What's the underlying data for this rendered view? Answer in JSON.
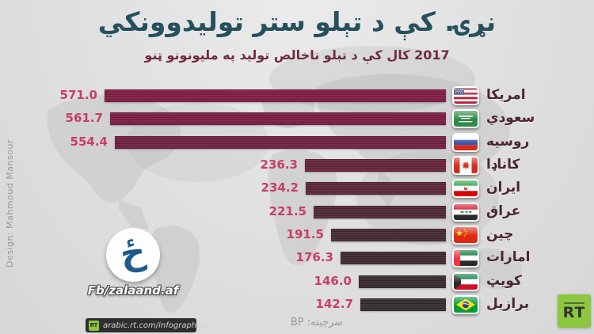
{
  "header": {
    "title": "نړۍ. کې د تېلو ستر توليدوونکي",
    "subtitle": "2017 کال کې د تېلو ناخالص تولید په ملیونونو ټنو"
  },
  "chart_data": {
    "type": "bar",
    "orientation": "horizontal",
    "title": "نړۍ. کې د تېلو ستر توليدوونکي",
    "subtitle": "2017 کال کې د تېلو ناخالص تولید په ملیونونو ټنو",
    "unit_note": "crude oil production 2017, millions of tonnes",
    "xlim": [
      0,
      571
    ],
    "categories": [
      "امریکا",
      "سعودي",
      "روسیه",
      "کاناډا",
      "ایران",
      "عراق",
      "چین",
      "امارات",
      "کویټ",
      "برازیل"
    ],
    "values": [
      571.0,
      561.7,
      554.4,
      236.3,
      234.2,
      221.5,
      191.5,
      176.3,
      146.0,
      142.7
    ],
    "value_labels": [
      "571.0",
      "561.7",
      "554.4",
      "236.3",
      "234.2",
      "221.5",
      "191.5",
      "176.3",
      "146.0",
      "142.7"
    ],
    "flags": [
      "us",
      "sa",
      "ru",
      "ca",
      "ir",
      "iq",
      "cn",
      "ae",
      "kw",
      "br"
    ],
    "bar_colors": [
      "#87234a",
      "#812449",
      "#772745",
      "#6c2941",
      "#612c3e",
      "#562e3a",
      "#4c2f38",
      "#453037",
      "#3e3136",
      "#3a3236"
    ],
    "legend": null,
    "grid": false,
    "source_label": "سرچینه: BP"
  },
  "branding": {
    "logo_glyph": "ځ",
    "fb_handle": "Fb/zalaand.af",
    "design_credit": "Design: Mahmoud Mansour",
    "footer_url": "arabic.rt.com/infographics",
    "rt_small_label": "RT",
    "rt_logo_label": "RT"
  },
  "colors": {
    "title": "#25505e",
    "subtitle": "#6e2d3b",
    "value_label": "#c73f63",
    "category_label": "#4a2630",
    "rt_green": "#8dc63f",
    "logo_blue": "#1d5b8c",
    "background": "#dfdfdf"
  }
}
